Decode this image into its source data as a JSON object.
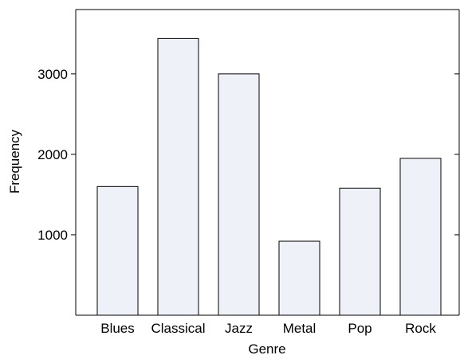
{
  "chart_data": {
    "type": "bar",
    "categories": [
      "Blues",
      "Classical",
      "Jazz",
      "Metal",
      "Pop",
      "Rock"
    ],
    "values": [
      1600,
      3440,
      3000,
      920,
      1580,
      1950
    ],
    "title": "",
    "xlabel": "Genre",
    "ylabel": "Frequency",
    "yticks": [
      1000,
      2000,
      3000
    ],
    "ylim": [
      0,
      3800
    ],
    "grid": false,
    "legend": "none",
    "bar_fill": "#eef2f8",
    "bar_stroke": "#000000"
  }
}
